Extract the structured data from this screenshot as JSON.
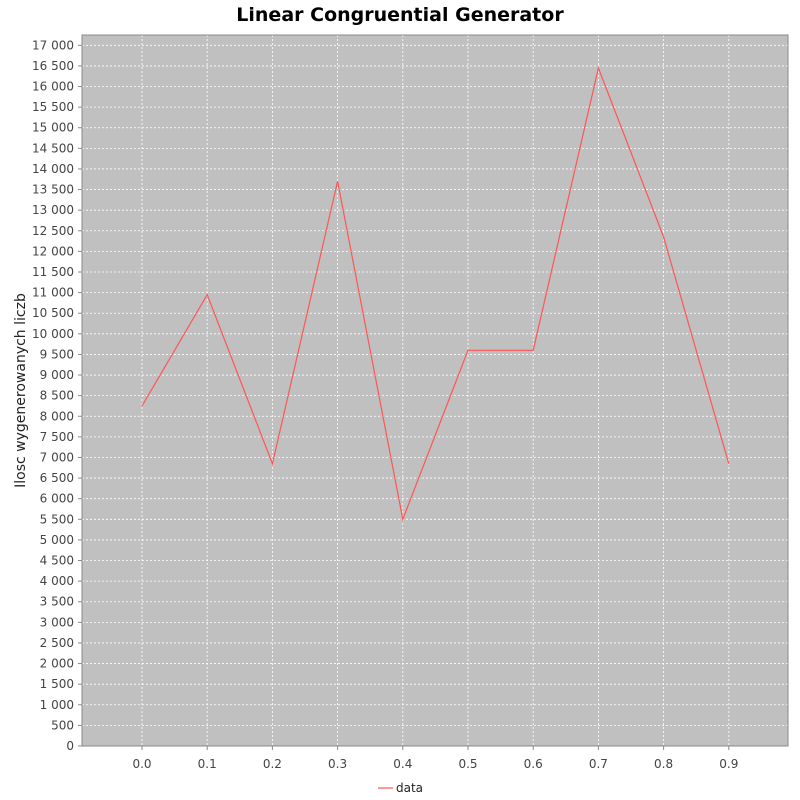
{
  "chart_data": {
    "type": "line",
    "title": "Linear Congruential Generator",
    "xlabel": "",
    "ylabel": "Ilosc wygenerowanych liczb",
    "categories": [
      "0.0",
      "0.1",
      "0.2",
      "0.3",
      "0.4",
      "0.5",
      "0.6",
      "0.7",
      "0.8",
      "0.9"
    ],
    "series": [
      {
        "name": "data",
        "color": "#ff5555",
        "values": [
          8250,
          10950,
          6850,
          13700,
          5500,
          9600,
          9600,
          16450,
          12350,
          6850
        ]
      }
    ],
    "ylim": [
      0,
      17250
    ],
    "yticks": [
      0,
      500,
      1000,
      1500,
      2000,
      2500,
      3000,
      3500,
      4000,
      4500,
      5000,
      5500,
      6000,
      6500,
      7000,
      7500,
      8000,
      8500,
      9000,
      9500,
      10000,
      10500,
      11000,
      11500,
      12000,
      12500,
      13000,
      13500,
      14000,
      14500,
      15000,
      15500,
      16000,
      16500,
      17000
    ],
    "ytick_labels": [
      "0",
      "500",
      "1 000",
      "1 500",
      "2 000",
      "2 500",
      "3 000",
      "3 500",
      "4 000",
      "4 500",
      "5 000",
      "5 500",
      "6 000",
      "6 500",
      "7 000",
      "7 500",
      "8 000",
      "8 500",
      "9 000",
      "9 500",
      "10 000",
      "10 500",
      "11 000",
      "11 500",
      "12 000",
      "12 500",
      "13 000",
      "13 500",
      "14 000",
      "14 500",
      "15 000",
      "15 500",
      "16 000",
      "16 500",
      "17 000"
    ],
    "grid": true,
    "legend": "bottom-center",
    "plot_background": "#c0c0c0"
  }
}
